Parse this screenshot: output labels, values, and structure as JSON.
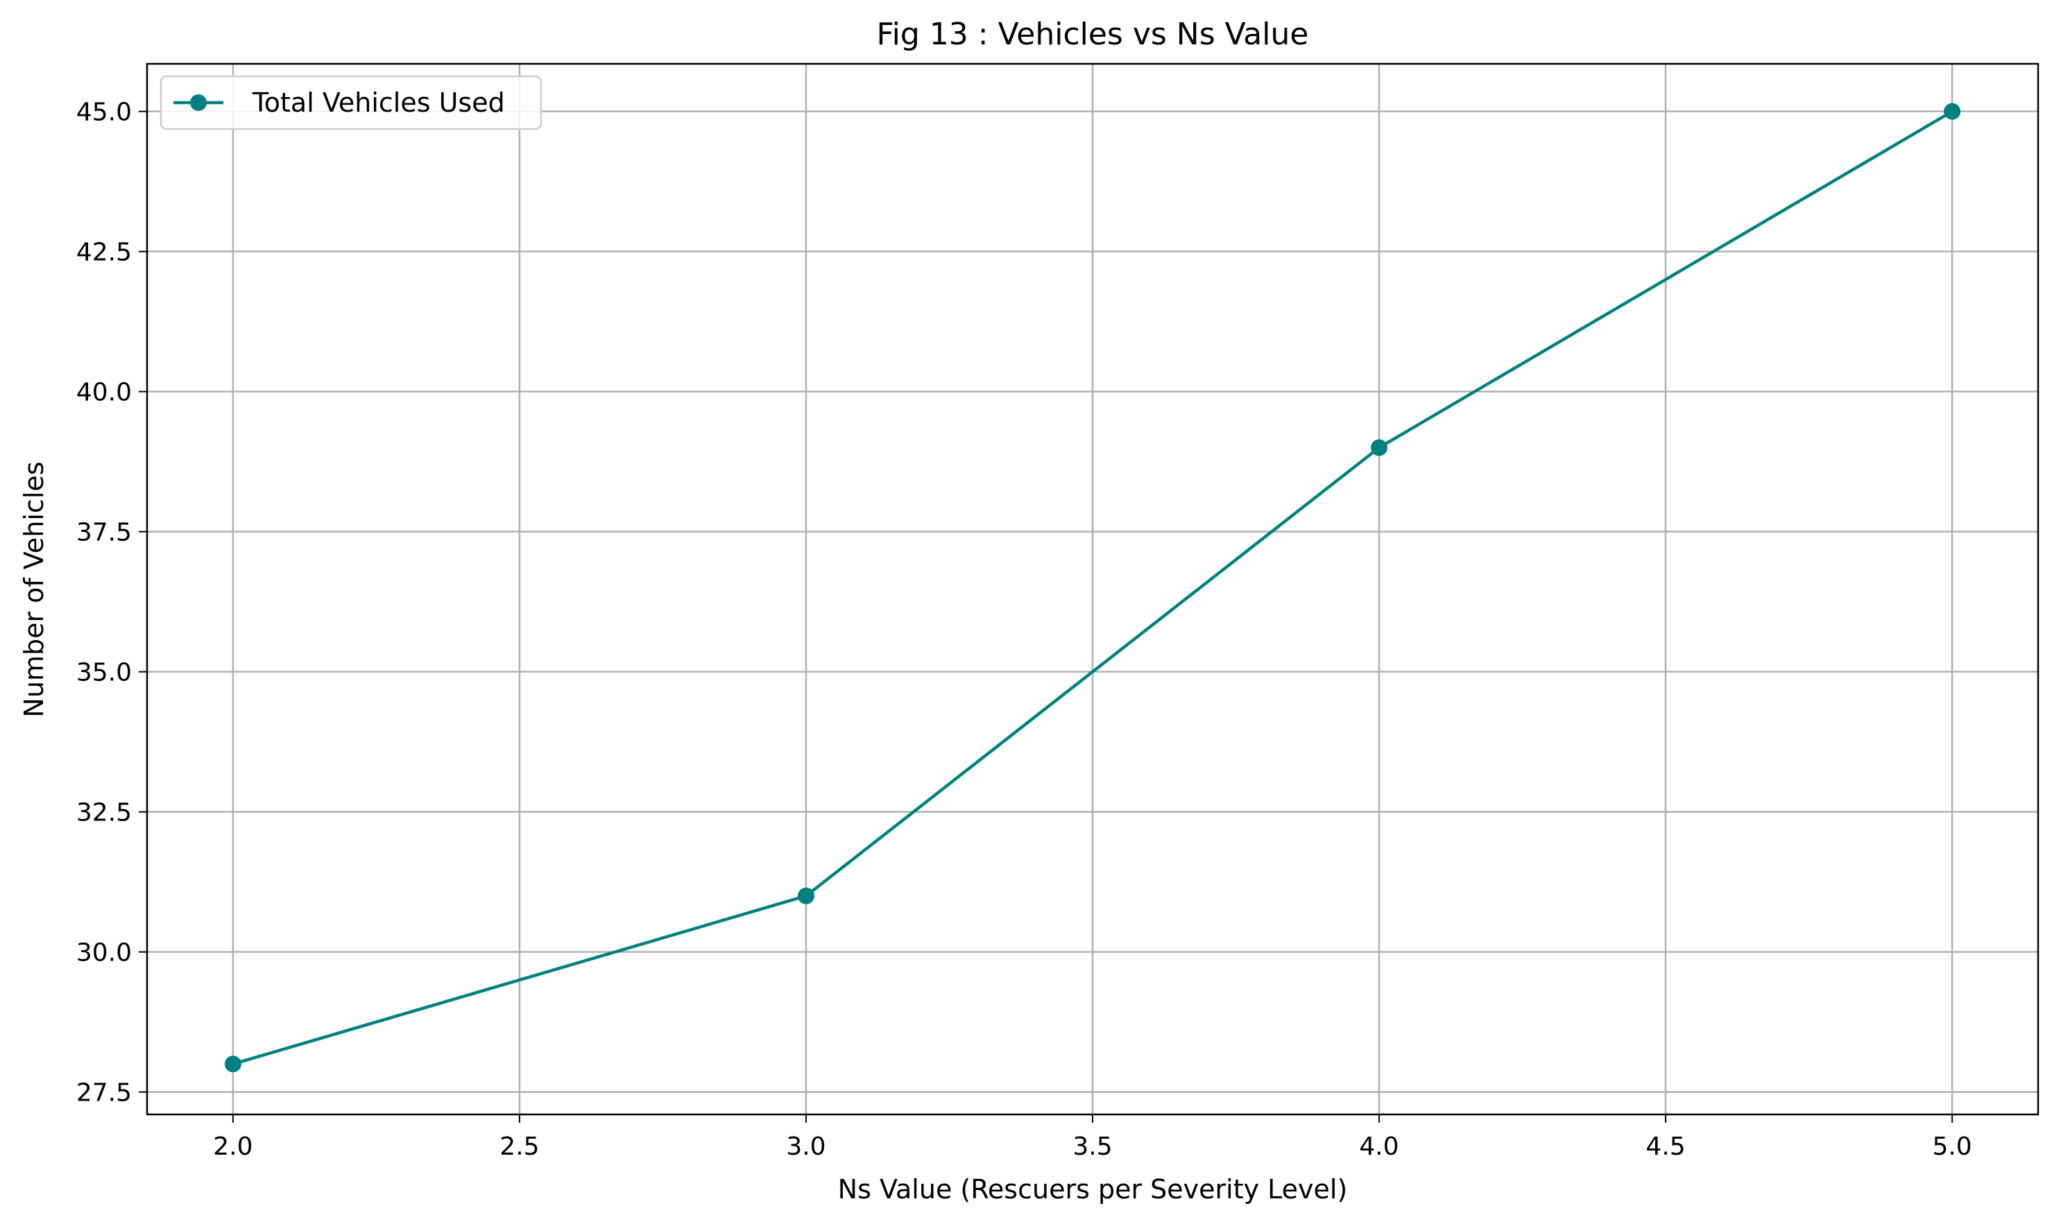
{
  "chart_data": {
    "type": "line",
    "title": "Fig 13 : Vehicles vs Ns Value",
    "xlabel": "Ns Value (Rescuers per Severity Level)",
    "ylabel": "Number of Vehicles",
    "xlim": [
      1.85,
      5.15
    ],
    "ylim": [
      27.1,
      45.85
    ],
    "xticks": [
      2.0,
      2.5,
      3.0,
      3.5,
      4.0,
      4.5,
      5.0
    ],
    "xtick_labels": [
      "2.0",
      "2.5",
      "3.0",
      "3.5",
      "4.0",
      "4.5",
      "5.0"
    ],
    "yticks": [
      27.5,
      30.0,
      32.5,
      35.0,
      37.5,
      40.0,
      42.5,
      45.0
    ],
    "ytick_labels": [
      "27.5",
      "30.0",
      "32.5",
      "35.0",
      "37.5",
      "40.0",
      "42.5",
      "45.0"
    ],
    "grid": true,
    "legend_position": "top-left",
    "series": [
      {
        "name": "Total Vehicles Used",
        "color": "#008080",
        "marker": "circle",
        "x": [
          2,
          3,
          4,
          5
        ],
        "y": [
          28,
          31,
          39,
          45
        ]
      }
    ]
  }
}
